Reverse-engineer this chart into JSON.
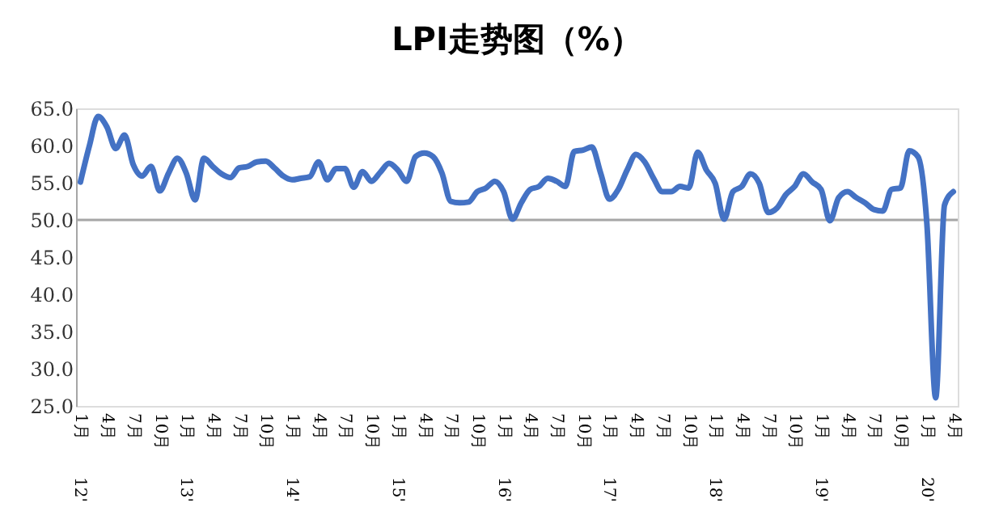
{
  "chart_data": {
    "type": "line",
    "title": "LPI走势图（%）",
    "categories": [
      "1月 12'",
      null,
      null,
      "4月",
      null,
      null,
      "7月",
      null,
      null,
      "10月",
      null,
      null,
      "1月 13'",
      null,
      null,
      "4月",
      null,
      null,
      "7月",
      null,
      null,
      "10月",
      null,
      null,
      "1月 14'",
      null,
      null,
      "4月",
      null,
      null,
      "7月",
      null,
      null,
      "10月",
      null,
      null,
      "1月 15'",
      null,
      null,
      "4月",
      null,
      null,
      "7月",
      null,
      null,
      "10月",
      null,
      null,
      "1月 16'",
      null,
      null,
      "4月",
      null,
      null,
      "7月",
      null,
      null,
      "10月",
      null,
      null,
      "1月 17'",
      null,
      null,
      "4月",
      null,
      null,
      "7月",
      null,
      null,
      "10月",
      null,
      null,
      "1月 18'",
      null,
      null,
      "4月",
      null,
      null,
      "7月",
      null,
      null,
      "10月",
      null,
      null,
      "1月 19'",
      null,
      null,
      "4月",
      null,
      null,
      "7月",
      null,
      null,
      "10月",
      null,
      null,
      "1月 20'",
      null,
      null,
      "4月"
    ],
    "series": [
      {
        "color": "#4472c4",
        "values": [
          55.1,
          59.9,
          63.9,
          62.5,
          59.6,
          61.4,
          57.4,
          55.9,
          57.2,
          53.9,
          56.3,
          58.3,
          56.3,
          52.7,
          58.3,
          57.2,
          56.2,
          55.7,
          57.0,
          57.2,
          57.8,
          57.9,
          57.0,
          55.9,
          55.4,
          55.6,
          55.8,
          57.8,
          55.4,
          56.9,
          56.9,
          54.4,
          56.5,
          55.2,
          56.4,
          57.6,
          56.7,
          55.2,
          58.5,
          59.0,
          58.5,
          56.3,
          52.5,
          52.3,
          52.4,
          53.8,
          54.3,
          55.2,
          53.8,
          50.1,
          52.3,
          54.1,
          54.5,
          55.6,
          55.2,
          54.5,
          59.2,
          59.4,
          59.8,
          56.3,
          52.8,
          54.1,
          56.7,
          58.8,
          57.8,
          55.6,
          53.8,
          53.8,
          54.5,
          54.3,
          59.1,
          56.7,
          54.9,
          50.1,
          53.8,
          54.5,
          56.2,
          54.9,
          51.0,
          51.6,
          53.4,
          54.5,
          56.2,
          55.1,
          54.1,
          49.9,
          53.0,
          53.8,
          53.0,
          52.3,
          51.4,
          51.2,
          54.1,
          54.3,
          59.3,
          58.5,
          49.5,
          26.1,
          52.0,
          53.8
        ]
      }
    ],
    "ylim": [
      25,
      65
    ],
    "yticks": [
      {
        "value": 25,
        "label": "25.0"
      },
      {
        "value": 30,
        "label": "30.0"
      },
      {
        "value": 35,
        "label": "35.0"
      },
      {
        "value": 40,
        "label": "40.0"
      },
      {
        "value": 45,
        "label": "45.0"
      },
      {
        "value": 50,
        "label": "50.0"
      },
      {
        "value": 55,
        "label": "55.0"
      },
      {
        "value": 60,
        "label": "60.0"
      },
      {
        "value": 65,
        "label": "65.0"
      }
    ],
    "ref_lines": [
      {
        "axis": "y",
        "value": 50,
        "color": "#a6a6a6"
      }
    ],
    "grid": false,
    "marker": "none",
    "line_style": "solid"
  }
}
